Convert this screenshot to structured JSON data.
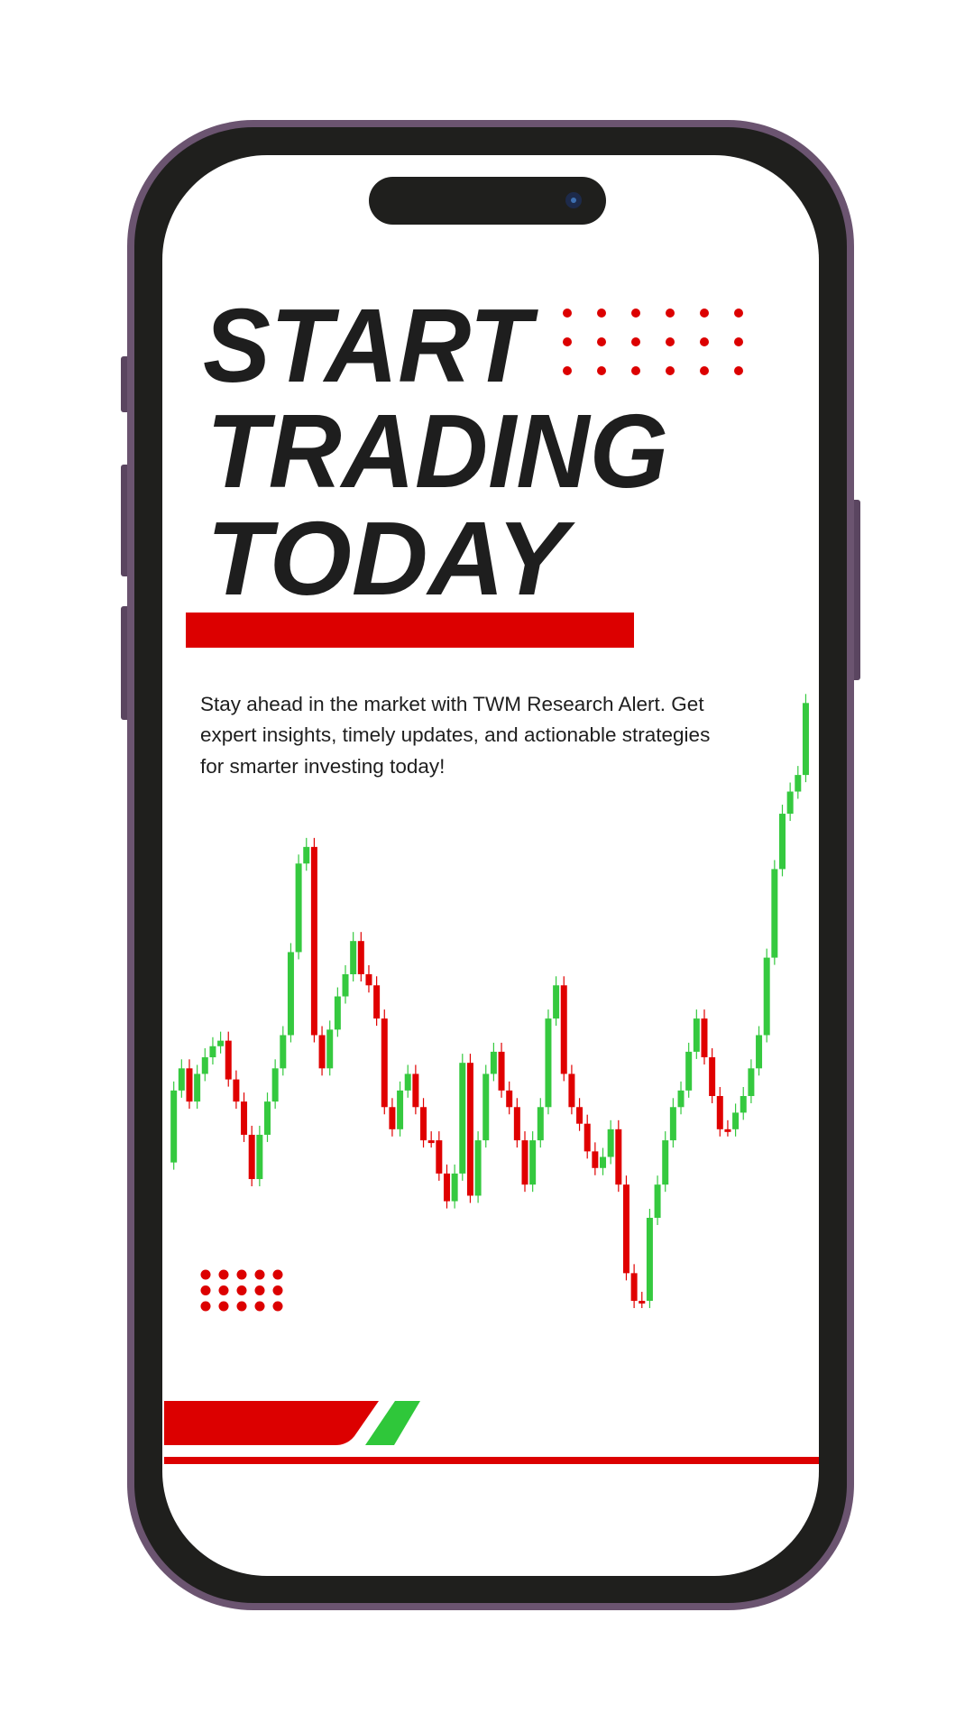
{
  "headline": {
    "lines": [
      "START",
      "TRADING",
      "TODAY"
    ]
  },
  "body": {
    "lines": [
      "Stay ahead in the market with TWM Research Alert. Get",
      "expert insights, timely updates, and actionable strategies",
      "for smarter investing today!"
    ]
  }
}
